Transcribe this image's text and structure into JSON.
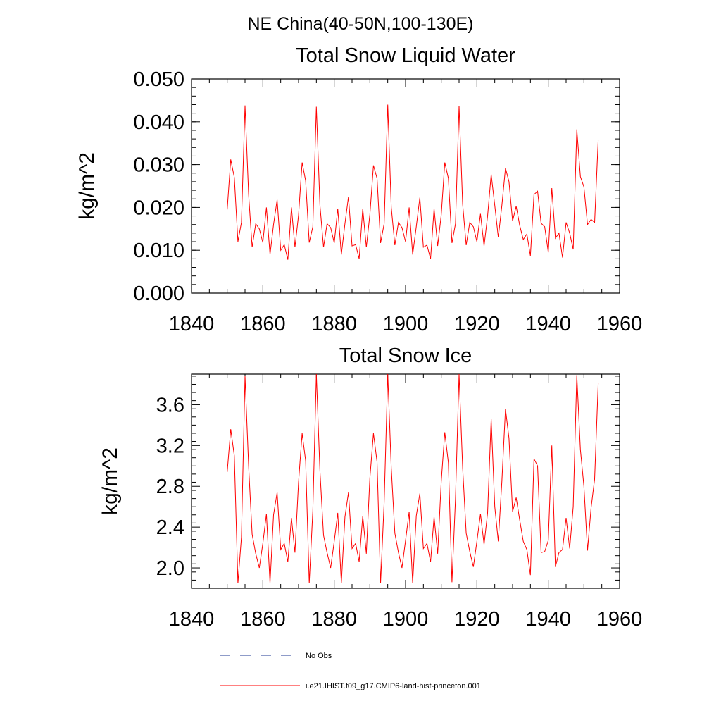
{
  "suptitle": "NE China(40-50N,100-130E)",
  "chart_data": [
    {
      "type": "line",
      "title": "Total Snow Liquid Water",
      "xlabel": "",
      "ylabel": "kg/m^2",
      "xlim": [
        1840,
        1960
      ],
      "ylim": [
        0.0,
        0.05
      ],
      "x_ticks": [
        1840,
        1860,
        1880,
        1900,
        1920,
        1940,
        1960
      ],
      "x_tick_labels": [
        "1840",
        "1860",
        "1880",
        "1900",
        "1920",
        "1940",
        "1960"
      ],
      "y_ticks": [
        0.0,
        0.01,
        0.02,
        0.03,
        0.04,
        0.05
      ],
      "y_tick_labels": [
        "0.000",
        "0.010",
        "0.020",
        "0.030",
        "0.040",
        "0.050"
      ],
      "y_minor_step": 0.002,
      "grid": false,
      "series": [
        {
          "name": "i.e21.IHIST.f09_g17.CMIP6-land-hist-princeton.001",
          "color": "#ff0000",
          "x": [
            1850,
            1851,
            1852,
            1853,
            1854,
            1855,
            1856,
            1857,
            1858,
            1859,
            1860,
            1861,
            1862,
            1863,
            1864,
            1865,
            1866,
            1867,
            1868,
            1869,
            1870,
            1871,
            1872,
            1873,
            1874,
            1875,
            1876,
            1877,
            1878,
            1879,
            1880,
            1881,
            1882,
            1883,
            1884,
            1885,
            1886,
            1887,
            1888,
            1889,
            1890,
            1891,
            1892,
            1893,
            1894,
            1895,
            1896,
            1897,
            1898,
            1899,
            1900,
            1901,
            1902,
            1903,
            1904,
            1905,
            1906,
            1907,
            1908,
            1909,
            1910,
            1911,
            1912,
            1913,
            1914,
            1915,
            1916,
            1917,
            1918,
            1919,
            1920,
            1921,
            1922,
            1923,
            1924,
            1925,
            1926,
            1927,
            1928,
            1929,
            1930,
            1931,
            1932,
            1933,
            1934,
            1935,
            1936,
            1937,
            1938,
            1939,
            1940,
            1941,
            1942,
            1943,
            1944,
            1945,
            1946,
            1947,
            1948,
            1949,
            1950,
            1951,
            1952,
            1953,
            1954
          ],
          "y": [
            0.0195,
            0.0312,
            0.027,
            0.012,
            0.0165,
            0.0438,
            0.023,
            0.0107,
            0.0162,
            0.015,
            0.0118,
            0.02,
            0.009,
            0.016,
            0.0218,
            0.01,
            0.0113,
            0.0078,
            0.02,
            0.0107,
            0.0182,
            0.0305,
            0.0262,
            0.0118,
            0.0155,
            0.0435,
            0.0205,
            0.0107,
            0.0162,
            0.0153,
            0.0117,
            0.0197,
            0.009,
            0.0162,
            0.0225,
            0.011,
            0.0113,
            0.008,
            0.0197,
            0.0107,
            0.0183,
            0.0298,
            0.0268,
            0.0117,
            0.0162,
            0.044,
            0.02,
            0.0112,
            0.0165,
            0.0153,
            0.012,
            0.02,
            0.009,
            0.0155,
            0.0223,
            0.0107,
            0.0112,
            0.008,
            0.0197,
            0.011,
            0.0183,
            0.0305,
            0.0268,
            0.0117,
            0.0162,
            0.0437,
            0.0207,
            0.0112,
            0.0165,
            0.0155,
            0.012,
            0.0185,
            0.011,
            0.018,
            0.0277,
            0.0205,
            0.013,
            0.0205,
            0.0292,
            0.026,
            0.0168,
            0.0203,
            0.0158,
            0.0125,
            0.0138,
            0.0087,
            0.023,
            0.0238,
            0.0163,
            0.0155,
            0.0095,
            0.0245,
            0.0128,
            0.014,
            0.0083,
            0.0165,
            0.014,
            0.0102,
            0.0382,
            0.0272,
            0.0248,
            0.016,
            0.0172,
            0.0165,
            0.0358
          ]
        }
      ]
    },
    {
      "type": "line",
      "title": "Total Snow Ice",
      "xlabel": "",
      "ylabel": "kg/m^2",
      "xlim": [
        1840,
        1960
      ],
      "ylim": [
        1.8,
        3.9
      ],
      "x_ticks": [
        1840,
        1860,
        1880,
        1900,
        1920,
        1940,
        1960
      ],
      "x_tick_labels": [
        "1840",
        "1860",
        "1880",
        "1900",
        "1920",
        "1940",
        "1960"
      ],
      "y_ticks": [
        2.0,
        2.4,
        2.8,
        3.2,
        3.6
      ],
      "y_tick_labels": [
        "2.0",
        "2.4",
        "2.8",
        "3.2",
        "3.6"
      ],
      "y_minor_step": 0.08,
      "grid": false,
      "series": [
        {
          "name": "i.e21.IHIST.f09_g17.CMIP6-land-hist-princeton.001",
          "color": "#ff0000",
          "x": [
            1850,
            1851,
            1852,
            1853,
            1854,
            1855,
            1856,
            1857,
            1858,
            1859,
            1860,
            1861,
            1862,
            1863,
            1864,
            1865,
            1866,
            1867,
            1868,
            1869,
            1870,
            1871,
            1872,
            1873,
            1874,
            1875,
            1876,
            1877,
            1878,
            1879,
            1880,
            1881,
            1882,
            1883,
            1884,
            1885,
            1886,
            1887,
            1888,
            1889,
            1890,
            1891,
            1892,
            1893,
            1894,
            1895,
            1896,
            1897,
            1898,
            1899,
            1900,
            1901,
            1902,
            1903,
            1904,
            1905,
            1906,
            1907,
            1908,
            1909,
            1910,
            1911,
            1912,
            1913,
            1914,
            1915,
            1916,
            1917,
            1918,
            1919,
            1920,
            1921,
            1922,
            1923,
            1924,
            1925,
            1926,
            1927,
            1928,
            1929,
            1930,
            1931,
            1932,
            1933,
            1934,
            1935,
            1936,
            1937,
            1938,
            1939,
            1940,
            1941,
            1942,
            1943,
            1944,
            1945,
            1946,
            1947,
            1948,
            1949,
            1950,
            1951,
            1952,
            1953,
            1954
          ],
          "y": [
            2.94,
            3.36,
            3.1,
            1.85,
            2.3,
            3.88,
            3.0,
            2.33,
            2.14,
            2.0,
            2.24,
            2.53,
            1.85,
            2.52,
            2.74,
            2.18,
            2.24,
            2.06,
            2.49,
            2.15,
            2.84,
            3.32,
            3.05,
            1.85,
            2.56,
            3.9,
            2.95,
            2.32,
            2.15,
            2.0,
            2.26,
            2.54,
            1.85,
            2.5,
            2.74,
            2.19,
            2.24,
            2.06,
            2.51,
            2.14,
            2.88,
            3.32,
            3.04,
            1.85,
            2.64,
            3.9,
            2.98,
            2.34,
            2.15,
            2.0,
            2.27,
            2.55,
            1.85,
            2.51,
            2.73,
            2.19,
            2.24,
            2.06,
            2.5,
            2.14,
            2.85,
            3.33,
            3.03,
            1.86,
            2.68,
            3.9,
            2.98,
            2.34,
            2.16,
            2.01,
            2.26,
            2.53,
            2.23,
            2.54,
            3.46,
            2.6,
            2.26,
            2.85,
            3.56,
            3.27,
            2.55,
            2.69,
            2.47,
            2.26,
            2.18,
            1.93,
            3.07,
            3.0,
            2.15,
            2.16,
            2.27,
            3.2,
            2.01,
            2.15,
            2.18,
            2.49,
            2.19,
            2.6,
            3.89,
            3.16,
            2.8,
            2.17,
            2.59,
            2.87,
            3.81
          ]
        }
      ]
    }
  ],
  "legend": {
    "items": [
      {
        "label": "No Obs",
        "color": "#1f3a93",
        "style": "dashed"
      },
      {
        "label": "i.e21.IHIST.f09_g17.CMIP6-land-hist-princeton.001",
        "color": "#ff0000",
        "style": "solid"
      }
    ]
  }
}
